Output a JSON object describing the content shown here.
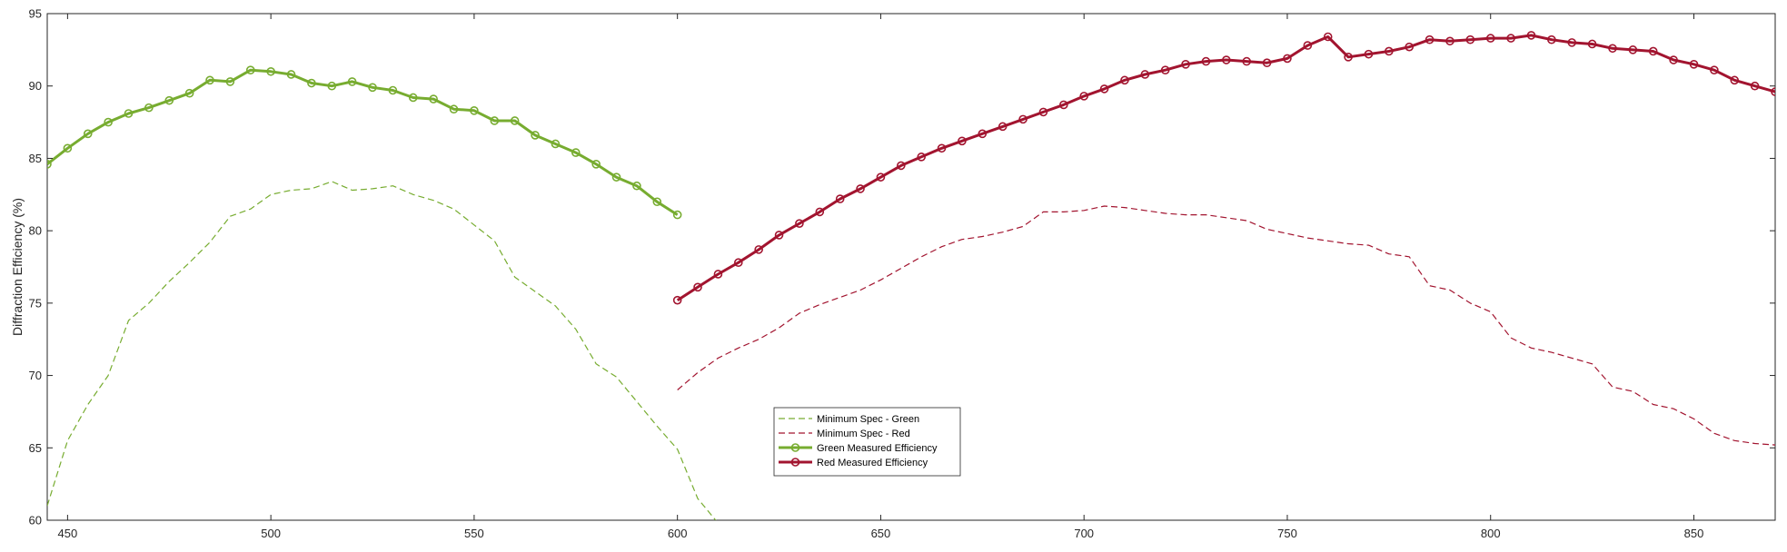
{
  "chart_data": {
    "type": "line",
    "ylabel": "Diffraction Efficiency (%)",
    "xlabel": "",
    "xlim": [
      445,
      870
    ],
    "ylim": [
      60,
      95
    ],
    "xticks": [
      450,
      500,
      550,
      600,
      650,
      700,
      750,
      800,
      850
    ],
    "yticks": [
      60,
      65,
      70,
      75,
      80,
      85,
      90,
      95
    ],
    "grid": false,
    "legend_position": "bottom-center",
    "colors": {
      "green": "#77ac30",
      "red": "#a2142f"
    },
    "series": [
      {
        "name": "Minimum Spec - Green",
        "style": "dashed",
        "color": "#77ac30",
        "x": [
          445,
          450,
          455,
          460,
          465,
          470,
          475,
          480,
          485,
          490,
          495,
          500,
          505,
          510,
          515,
          520,
          525,
          530,
          535,
          540,
          545,
          550,
          555,
          560,
          565,
          570,
          575,
          580,
          585,
          590,
          595,
          600,
          605,
          610
        ],
        "y": [
          61,
          65.5,
          68,
          70,
          73.8,
          75,
          76.5,
          77.8,
          79.2,
          81,
          81.5,
          82.5,
          82.8,
          82.9,
          83.4,
          82.8,
          82.9,
          83.1,
          82.5,
          82.1,
          81.5,
          80.4,
          79.3,
          76.8,
          75.8,
          74.8,
          73.2,
          70.8,
          69.9,
          68.2,
          66.5,
          64.9,
          61.5,
          59.8
        ]
      },
      {
        "name": "Minimum Spec - Red",
        "style": "dashed",
        "color": "#a2142f",
        "x": [
          600,
          605,
          610,
          615,
          620,
          625,
          630,
          635,
          640,
          645,
          650,
          655,
          660,
          665,
          670,
          675,
          680,
          685,
          690,
          695,
          700,
          705,
          710,
          715,
          720,
          725,
          730,
          735,
          740,
          745,
          750,
          755,
          760,
          765,
          770,
          775,
          780,
          785,
          790,
          795,
          800,
          805,
          810,
          815,
          820,
          825,
          830,
          835,
          840,
          845,
          850,
          855,
          860,
          865,
          870
        ],
        "y": [
          69,
          70.2,
          71.2,
          71.9,
          72.5,
          73.3,
          74.3,
          74.9,
          75.4,
          75.9,
          76.6,
          77.4,
          78.2,
          78.9,
          79.4,
          79.6,
          79.9,
          80.3,
          81.3,
          81.3,
          81.4,
          81.7,
          81.6,
          81.4,
          81.2,
          81.1,
          81.1,
          80.9,
          80.7,
          80.1,
          79.8,
          79.5,
          79.3,
          79.1,
          79,
          78.4,
          78.2,
          76.2,
          75.9,
          75,
          74.4,
          72.6,
          71.9,
          71.6,
          71.2,
          70.8,
          69.2,
          68.9,
          68,
          67.7,
          67,
          66,
          65.5,
          65.3,
          65.2
        ]
      },
      {
        "name": "Green Measured Efficiency",
        "style": "solid-markers",
        "color": "#77ac30",
        "x": [
          445,
          450,
          455,
          460,
          465,
          470,
          475,
          480,
          485,
          490,
          495,
          500,
          505,
          510,
          515,
          520,
          525,
          530,
          535,
          540,
          545,
          550,
          555,
          560,
          565,
          570,
          575,
          580,
          585,
          590,
          595,
          600
        ],
        "y": [
          84.6,
          85.7,
          86.7,
          87.5,
          88.1,
          88.5,
          89,
          89.5,
          90.4,
          90.3,
          91.1,
          91,
          90.8,
          90.2,
          90,
          90.3,
          89.9,
          89.7,
          89.2,
          89.1,
          88.4,
          88.3,
          87.6,
          87.6,
          86.6,
          86,
          85.4,
          84.6,
          83.7,
          83.1,
          82,
          81.1
        ]
      },
      {
        "name": "Red Measured Efficiency",
        "style": "solid-markers",
        "color": "#a2142f",
        "x": [
          600,
          605,
          610,
          615,
          620,
          625,
          630,
          635,
          640,
          645,
          650,
          655,
          660,
          665,
          670,
          675,
          680,
          685,
          690,
          695,
          700,
          705,
          710,
          715,
          720,
          725,
          730,
          735,
          740,
          745,
          750,
          755,
          760,
          765,
          770,
          775,
          780,
          785,
          790,
          795,
          800,
          805,
          810,
          815,
          820,
          825,
          830,
          835,
          840,
          845,
          850,
          855,
          860,
          865,
          870
        ],
        "y": [
          75.2,
          76.1,
          77,
          77.8,
          78.7,
          79.7,
          80.5,
          81.3,
          82.2,
          82.9,
          83.7,
          84.5,
          85.1,
          85.7,
          86.2,
          86.7,
          87.2,
          87.7,
          88.2,
          88.7,
          89.3,
          89.8,
          90.4,
          90.8,
          91.1,
          91.5,
          91.7,
          91.8,
          91.7,
          91.6,
          91.9,
          92.8,
          93.4,
          92,
          92.2,
          92.4,
          92.7,
          93.2,
          93.1,
          93.2,
          93.3,
          93.3,
          93.5,
          93.2,
          93,
          92.9,
          92.6,
          92.5,
          92.4,
          91.8,
          91.5,
          91.1,
          90.4,
          90,
          89.6
        ]
      }
    ]
  }
}
